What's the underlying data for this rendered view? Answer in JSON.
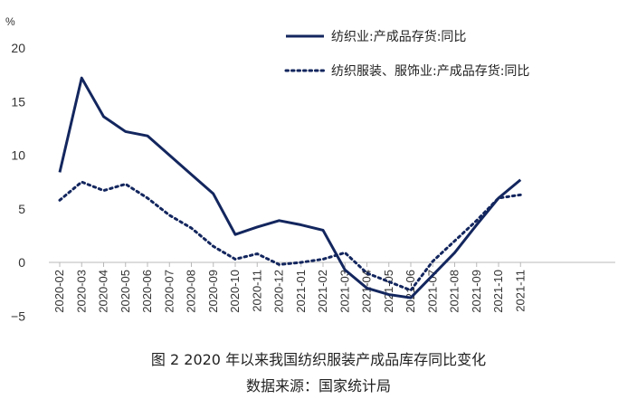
{
  "chart_data": {
    "type": "line",
    "unit_label": "%",
    "categories": [
      "2020-02",
      "2020-03",
      "2020-04",
      "2020-05",
      "2020-06",
      "2020-07",
      "2020-08",
      "2020-09",
      "2020-10",
      "2020-11",
      "2020-12",
      "2021-01",
      "2021-02",
      "2021-03",
      "2021-04",
      "2021-05",
      "2021-06",
      "2021-07",
      "2021-08",
      "2021-09",
      "2021-10",
      "2021-11"
    ],
    "yticks": [
      "20",
      "15",
      "10",
      "5",
      "0",
      "−5"
    ],
    "ylim": [
      -5,
      20
    ],
    "series": [
      {
        "name": "纺织业:产成品存货:同比",
        "style": "solid",
        "color": "#13265e",
        "values": [
          8.4,
          17.2,
          13.6,
          12.2,
          11.8,
          10.0,
          8.2,
          6.4,
          2.6,
          3.3,
          3.9,
          3.5,
          3.0,
          -0.7,
          -2.4,
          -3.0,
          -3.3,
          -1.2,
          0.9,
          3.5,
          6.0,
          7.7
        ]
      },
      {
        "name": "纺织服装、服饰业:产成品存货:同比",
        "style": "dotted",
        "color": "#13265e",
        "values": [
          5.8,
          7.5,
          6.7,
          7.3,
          6.0,
          4.4,
          3.2,
          1.5,
          0.3,
          0.8,
          -0.2,
          0.0,
          0.3,
          0.9,
          -1.0,
          -1.8,
          -2.6,
          0.1,
          2.0,
          3.9,
          6.0,
          6.3
        ]
      }
    ]
  },
  "caption": "图 2 2020 年以来我国纺织服装产成品库存同比变化",
  "source": "数据来源：国家统计局"
}
